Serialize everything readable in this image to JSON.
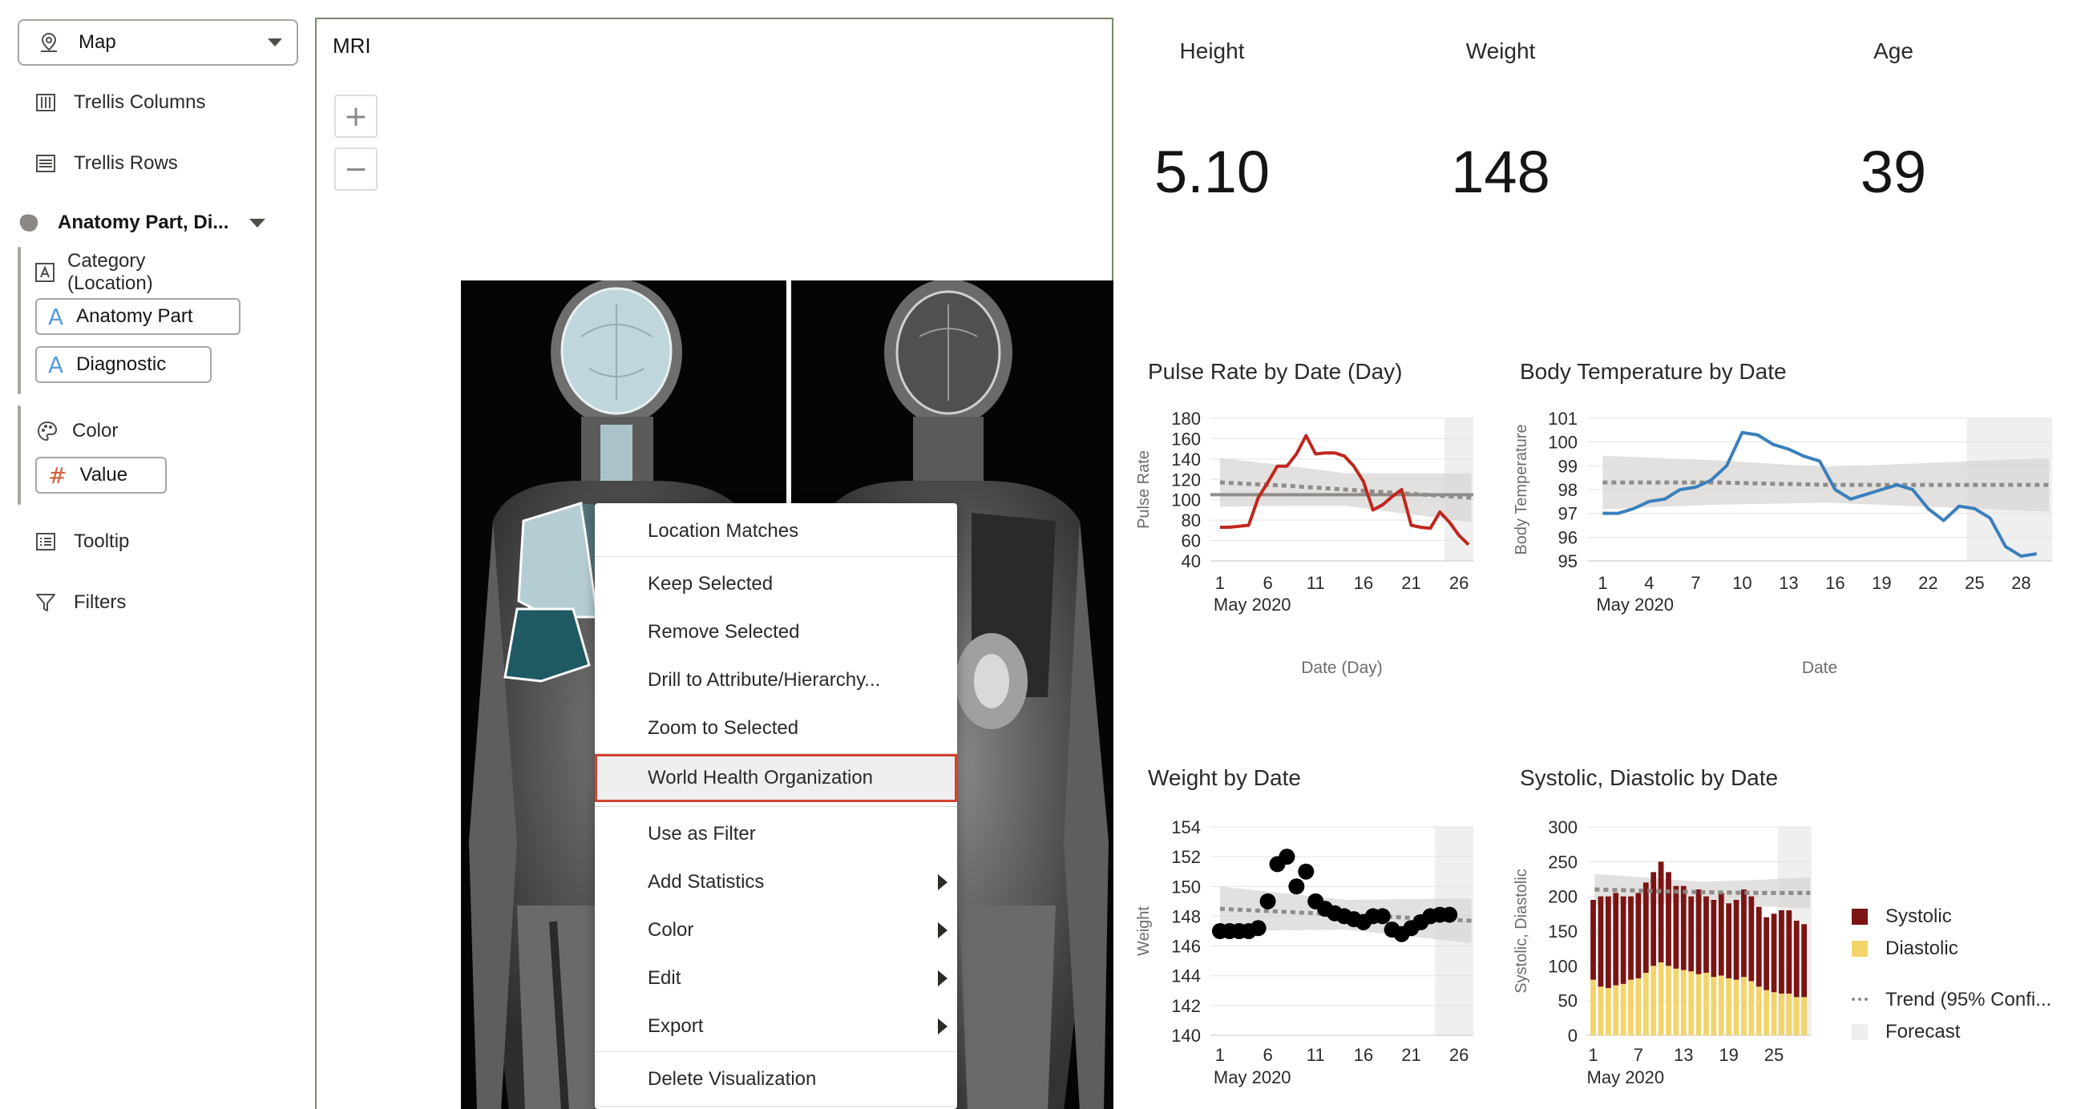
{
  "grammar": {
    "viz_type": "Map",
    "trellis_columns": "Trellis Columns",
    "trellis_rows": "Trellis Rows",
    "layer_name": "Anatomy Part, Di...",
    "category_label": "Category (Location)",
    "category_items": [
      "Anatomy Part",
      "Diagnostic"
    ],
    "color_label": "Color",
    "color_value": "Value",
    "tooltip": "Tooltip",
    "filters": "Filters"
  },
  "mri": {
    "title": "MRI",
    "zoom_in": "+",
    "zoom_out": "−"
  },
  "context_menu": {
    "items": [
      {
        "label": "Location Matches",
        "submenu": false
      },
      {
        "label": "Keep Selected",
        "submenu": false
      },
      {
        "label": "Remove Selected",
        "submenu": false
      },
      {
        "label": "Drill to Attribute/Hierarchy...",
        "submenu": false
      },
      {
        "label": "Zoom to Selected",
        "submenu": false
      },
      {
        "label": "World Health Organization",
        "submenu": false,
        "highlighted": true
      },
      {
        "label": "Use as Filter",
        "submenu": false
      },
      {
        "label": "Add Statistics",
        "submenu": true
      },
      {
        "label": "Color",
        "submenu": true
      },
      {
        "label": "Edit",
        "submenu": true
      },
      {
        "label": "Export",
        "submenu": true
      },
      {
        "label": "Delete Visualization",
        "submenu": false
      }
    ],
    "highlight_color": "#d2432f"
  },
  "kpis": [
    {
      "label": "Height",
      "value": "5.10"
    },
    {
      "label": "Weight",
      "value": "148"
    },
    {
      "label": "Age",
      "value": "39"
    }
  ],
  "legend": {
    "items": [
      {
        "label": "Systolic",
        "color": "#7b1414"
      },
      {
        "label": "Diastolic",
        "color": "#f2d46b"
      },
      {
        "label": "Trend (95% Confi...",
        "color": "#8a8784"
      },
      {
        "label": "Forecast",
        "color": "#efefef"
      }
    ]
  },
  "chart_data": [
    {
      "type": "line",
      "title": "Pulse Rate by Date (Day)",
      "xlabel": "Date (Day)",
      "ylabel": "Pulse Rate",
      "x_ticks": [
        "1",
        "6",
        "11",
        "16",
        "21",
        "26"
      ],
      "x_sub": "May 2020",
      "ylim": [
        40,
        180
      ],
      "y_ticks": [
        40,
        60,
        80,
        100,
        120,
        140,
        160,
        180
      ],
      "color": "#c0271e",
      "x": [
        1,
        2,
        3,
        4,
        5,
        6,
        7,
        8,
        9,
        10,
        11,
        12,
        13,
        14,
        15,
        16,
        17,
        18,
        19,
        20,
        21,
        22,
        23,
        24,
        25,
        26,
        27
      ],
      "values": [
        73,
        73,
        74,
        75,
        102,
        117,
        133,
        133,
        145,
        163,
        145,
        146,
        146,
        143,
        133,
        118,
        90,
        95,
        103,
        110,
        75,
        73,
        72,
        88,
        78,
        65,
        56
      ],
      "average": 105,
      "trend": [
        117,
        114,
        110,
        106,
        102
      ],
      "band_half": 16,
      "forecast_start": 24.5,
      "xlim": [
        0,
        27.5
      ]
    },
    {
      "type": "line",
      "title": "Body Temperature by Date",
      "xlabel": "Date",
      "ylabel": "Body Temperature",
      "x_ticks": [
        "1",
        "4",
        "7",
        "10",
        "13",
        "16",
        "19",
        "22",
        "25",
        "28"
      ],
      "x_sub": "May 2020",
      "ylim": [
        95,
        101
      ],
      "y_ticks": [
        95,
        96,
        97,
        98,
        99,
        100,
        101
      ],
      "color": "#3a7fbd",
      "x": [
        1,
        2,
        3,
        4,
        5,
        6,
        7,
        8,
        9,
        10,
        11,
        12,
        13,
        14,
        15,
        16,
        17,
        18,
        19,
        20,
        21,
        22,
        23,
        24,
        25,
        26,
        27,
        28,
        29
      ],
      "values": [
        97,
        97,
        97.2,
        97.5,
        97.6,
        98,
        98.1,
        98.4,
        99,
        100.4,
        100.3,
        99.9,
        99.7,
        99.4,
        99.2,
        98,
        97.6,
        97.8,
        98,
        98.2,
        98,
        97.2,
        96.7,
        97.3,
        97.2,
        96.8,
        95.6,
        95.2,
        95.3
      ],
      "trend": [
        98.3,
        98.3,
        98.2,
        98.2,
        98.2
      ],
      "band_half": 0.75,
      "forecast_start": 24.5,
      "xlim": [
        0,
        30
      ]
    },
    {
      "type": "scatter",
      "title": "Weight by Date",
      "xlabel": "",
      "ylabel": "Weight",
      "x_ticks": [
        "1",
        "6",
        "11",
        "16",
        "21",
        "26"
      ],
      "x_sub": "May 2020",
      "ylim": [
        140,
        154
      ],
      "y_ticks": [
        140,
        142,
        144,
        146,
        148,
        150,
        152,
        154
      ],
      "color": "#000000",
      "x": [
        1,
        2,
        3,
        4,
        5,
        6,
        7,
        8,
        9,
        10,
        11,
        12,
        13,
        14,
        15,
        16,
        17,
        18,
        19,
        20,
        21,
        22,
        23,
        24,
        25
      ],
      "values": [
        147,
        147,
        147,
        147,
        147.2,
        149,
        151.5,
        152,
        150,
        151,
        149,
        148.5,
        148.2,
        148,
        147.8,
        147.6,
        148,
        148,
        147.1,
        146.8,
        147.2,
        147.6,
        148,
        148.1,
        148.1
      ],
      "trend": [
        148.5,
        148.3,
        148.1,
        147.9,
        147.7
      ],
      "band_half": 1.0,
      "forecast_start": 23.5,
      "xlim": [
        0,
        27.5
      ]
    },
    {
      "type": "bar",
      "title": "Systolic, Diastolic by Date",
      "xlabel": "",
      "ylabel": "Systolic, Diastolic",
      "x_ticks": [
        "1",
        "7",
        "13",
        "19",
        "25"
      ],
      "x_sub": "May 2020",
      "ylim": [
        0,
        300
      ],
      "y_ticks": [
        0,
        50,
        100,
        150,
        200,
        250,
        300
      ],
      "series": [
        {
          "name": "Diastolic",
          "color": "#f2d46b",
          "values": [
            80,
            70,
            68,
            72,
            74,
            80,
            82,
            90,
            100,
            105,
            100,
            96,
            94,
            92,
            88,
            90,
            84,
            86,
            82,
            80,
            84,
            78,
            70,
            65,
            62,
            60,
            60,
            55,
            55
          ]
        },
        {
          "name": "Systolic",
          "color": "#7b1414",
          "values": [
            195,
            200,
            200,
            205,
            200,
            200,
            205,
            220,
            235,
            250,
            235,
            215,
            215,
            200,
            210,
            200,
            195,
            205,
            190,
            195,
            210,
            200,
            185,
            170,
            175,
            180,
            180,
            165,
            160
          ]
        }
      ],
      "trend": [
        210,
        208,
        206,
        205,
        205
      ],
      "band_half": 15,
      "forecast_start": 25.5,
      "xlim": [
        0.2,
        30
      ]
    }
  ]
}
